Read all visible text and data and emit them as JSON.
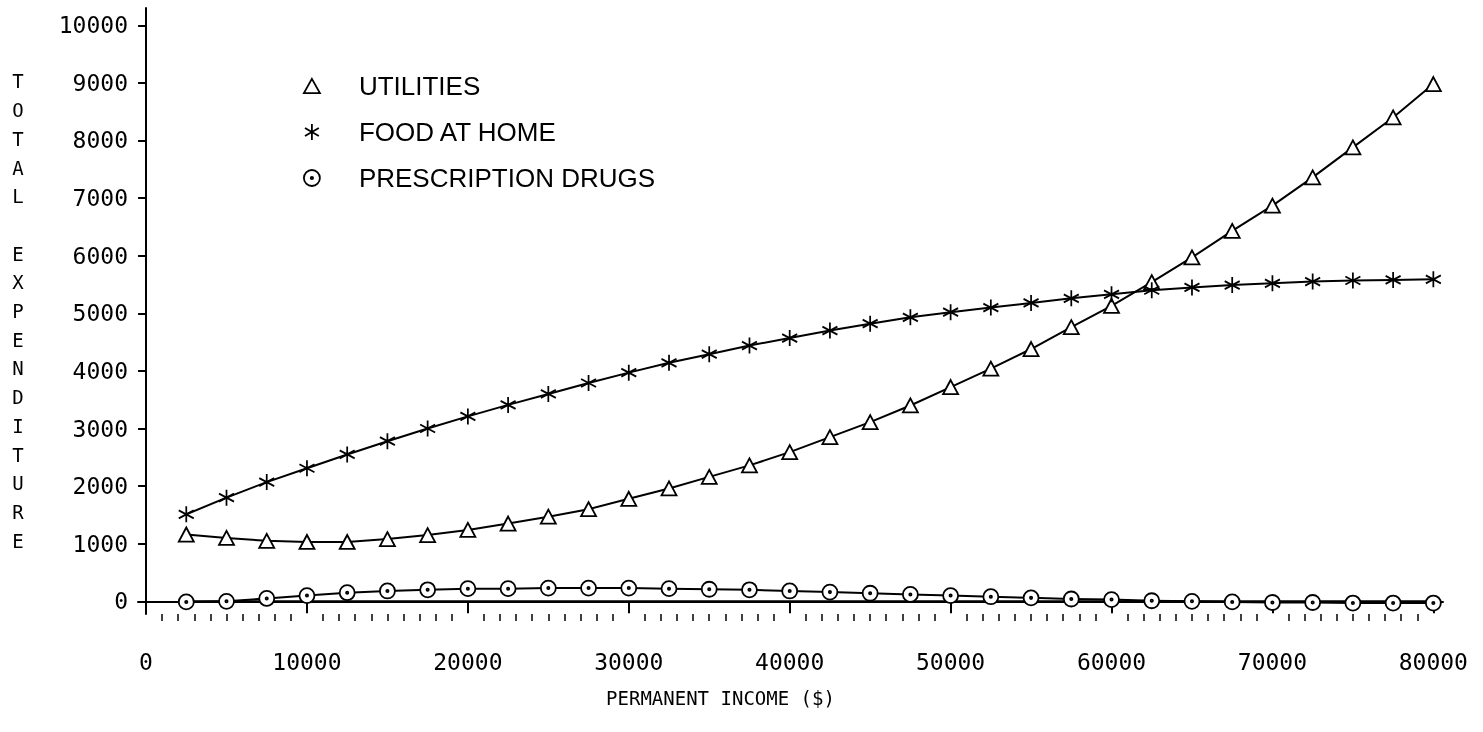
{
  "chart_data": {
    "type": "line",
    "xlabel": "PERMANENT INCOME ($)",
    "ylabel": "TOTAL EXPENDITURE",
    "x": [
      2500,
      5000,
      7500,
      10000,
      12500,
      15000,
      17500,
      20000,
      22500,
      25000,
      27500,
      30000,
      32500,
      35000,
      37500,
      40000,
      42500,
      45000,
      47500,
      50000,
      52500,
      55000,
      57500,
      60000,
      62500,
      65000,
      67500,
      70000,
      72500,
      75000,
      77500,
      80000
    ],
    "series": [
      {
        "name": "UTILITIES",
        "color": "#000000",
        "marker": "triangle",
        "values": [
          1160,
          1100,
          1050,
          1030,
          1030,
          1080,
          1150,
          1240,
          1350,
          1470,
          1600,
          1780,
          1960,
          2160,
          2360,
          2590,
          2850,
          3110,
          3400,
          3720,
          4040,
          4380,
          4760,
          5130,
          5540,
          5970,
          6430,
          6870,
          7360,
          7880,
          8400,
          8980
        ]
      },
      {
        "name": "FOOD AT HOME",
        "color": "#000000",
        "marker": "cross",
        "values": [
          1510,
          1800,
          2070,
          2310,
          2550,
          2780,
          3000,
          3210,
          3410,
          3600,
          3790,
          3970,
          4140,
          4290,
          4440,
          4570,
          4700,
          4820,
          4930,
          5020,
          5100,
          5180,
          5260,
          5330,
          5400,
          5450,
          5490,
          5520,
          5550,
          5570,
          5580,
          5590
        ]
      },
      {
        "name": "PRESCRIPTION DRUGS",
        "color": "#000000",
        "marker": "circle",
        "values": [
          -10,
          0,
          50,
          100,
          150,
          180,
          200,
          220,
          220,
          230,
          230,
          230,
          220,
          210,
          200,
          180,
          160,
          140,
          120,
          100,
          80,
          60,
          40,
          30,
          10,
          0,
          -10,
          -20,
          -20,
          -30,
          -30,
          -30
        ]
      },
      {
        "color": "#000000",
        "marker": "none",
        "x": [
          2500,
          80000
        ],
        "values": [
          0,
          0
        ]
      }
    ],
    "xlim": [
      -500,
      80600
    ],
    "ylim": [
      -220,
      10300
    ],
    "xticks": [
      0,
      {
        "value": 1000,
        "label": null
      },
      {
        "value": 2000,
        "label": null
      },
      {
        "value": 3000,
        "label": null
      },
      {
        "value": 4000,
        "label": null
      },
      {
        "value": 5000,
        "label": null
      },
      {
        "value": 6000,
        "label": null
      },
      {
        "value": 7000,
        "label": null
      },
      {
        "value": 8000,
        "label": null
      },
      {
        "value": 9000,
        "label": null
      },
      10000,
      {
        "value": 11000,
        "label": null
      },
      {
        "value": 12000,
        "label": null
      },
      {
        "value": 13000,
        "label": null
      },
      {
        "value": 14000,
        "label": null
      },
      {
        "value": 15000,
        "label": null
      },
      {
        "value": 16000,
        "label": null
      },
      {
        "value": 17000,
        "label": null
      },
      {
        "value": 18000,
        "label": null
      },
      {
        "value": 19000,
        "label": null
      },
      20000,
      {
        "value": 21000,
        "label": null
      },
      {
        "value": 22000,
        "label": null
      },
      {
        "value": 23000,
        "label": null
      },
      {
        "value": 24000,
        "label": null
      },
      {
        "value": 25000,
        "label": null
      },
      {
        "value": 26000,
        "label": null
      },
      {
        "value": 27000,
        "label": null
      },
      {
        "value": 28000,
        "label": null
      },
      {
        "value": 29000,
        "label": null
      },
      30000,
      {
        "value": 31000,
        "label": null
      },
      {
        "value": 32000,
        "label": null
      },
      {
        "value": 33000,
        "label": null
      },
      {
        "value": 34000,
        "label": null
      },
      {
        "value": 35000,
        "label": null
      },
      {
        "value": 36000,
        "label": null
      },
      {
        "value": 37000,
        "label": null
      },
      {
        "value": 38000,
        "label": null
      },
      {
        "value": 39000,
        "label": null
      },
      40000,
      {
        "value": 41000,
        "label": null
      },
      {
        "value": 42000,
        "label": null
      },
      {
        "value": 43000,
        "label": null
      },
      {
        "value": 44000,
        "label": null
      },
      {
        "value": 45000,
        "label": null
      },
      {
        "value": 46000,
        "label": null
      },
      {
        "value": 47000,
        "label": null
      },
      {
        "value": 48000,
        "label": null
      },
      {
        "value": 49000,
        "label": null
      },
      50000,
      {
        "value": 51000,
        "label": null
      },
      {
        "value": 52000,
        "label": null
      },
      {
        "value": 53000,
        "label": null
      },
      {
        "value": 54000,
        "label": null
      },
      {
        "value": 55000,
        "label": null
      },
      {
        "value": 56000,
        "label": null
      },
      {
        "value": 57000,
        "label": null
      },
      {
        "value": 58000,
        "label": null
      },
      {
        "value": 59000,
        "label": null
      },
      60000,
      {
        "value": 61000,
        "label": null
      },
      {
        "value": 62000,
        "label": null
      },
      {
        "value": 63000,
        "label": null
      },
      {
        "value": 64000,
        "label": null
      },
      {
        "value": 65000,
        "label": null
      },
      {
        "value": 66000,
        "label": null
      },
      {
        "value": 67000,
        "label": null
      },
      {
        "value": 68000,
        "label": null
      },
      {
        "value": 69000,
        "label": null
      },
      70000,
      {
        "value": 71000,
        "label": null
      },
      {
        "value": 72000,
        "label": null
      },
      {
        "value": 73000,
        "label": null
      },
      {
        "value": 74000,
        "label": null
      },
      {
        "value": 75000,
        "label": null
      },
      {
        "value": 76000,
        "label": null
      },
      {
        "value": 77000,
        "label": null
      },
      {
        "value": 78000,
        "label": null
      },
      {
        "value": 79000,
        "label": null
      },
      80000
    ],
    "yticks": [
      0,
      1000,
      2000,
      3000,
      4000,
      5000,
      6000,
      7000,
      8000,
      9000,
      10000
    ],
    "legend": "top left",
    "line_style": "solid"
  }
}
